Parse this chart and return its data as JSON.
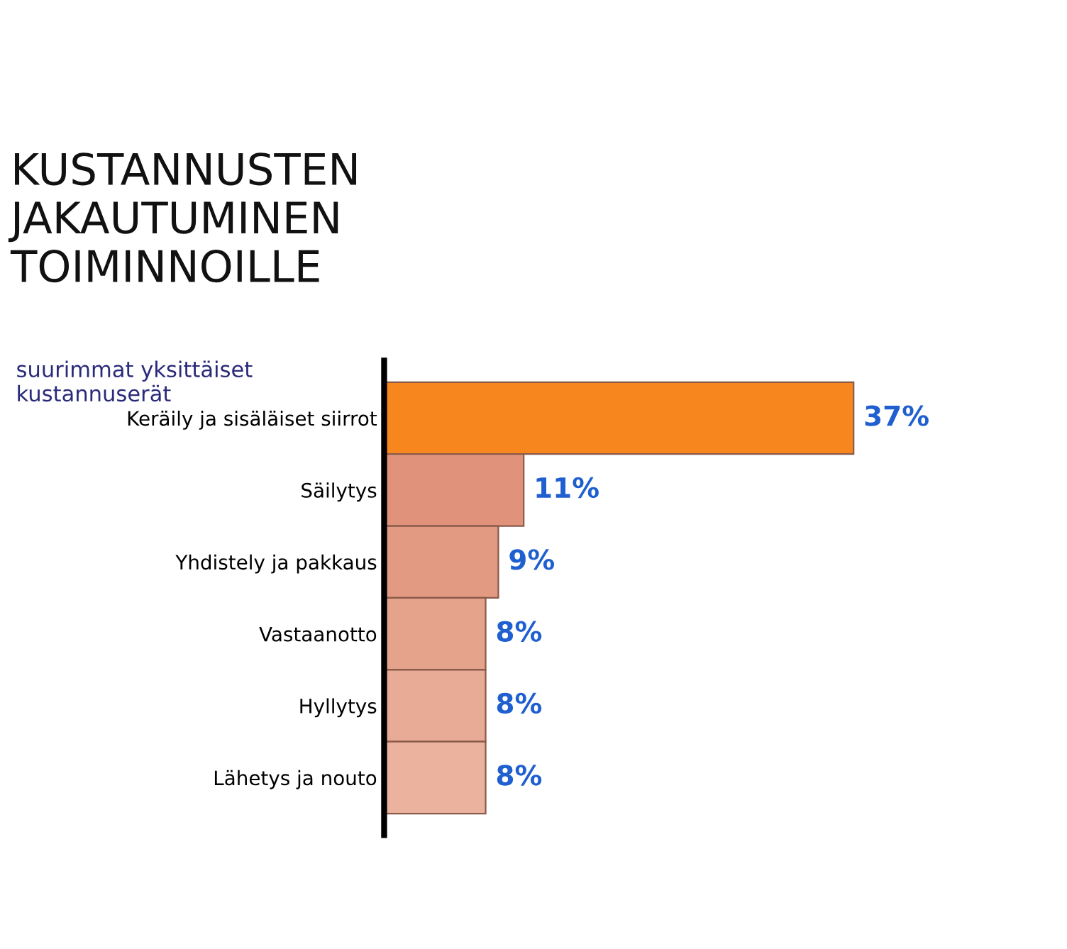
{
  "chart_data": {
    "type": "bar",
    "orientation": "horizontal",
    "title": "KUSTANNUSTEN\nJAKAUTUMINEN\nTOIMINNOILLE",
    "subtitle": "suurimmat yksittäiset\nkustannuserät",
    "categories": [
      "Keräily ja sisäläiset siirrot",
      "Säilytys",
      "Yhdistely ja pakkaus",
      "Vastaanotto",
      "Hyllytys",
      "Lähetys ja nouto"
    ],
    "values": [
      37,
      11,
      9,
      8,
      8,
      8
    ],
    "value_labels": [
      "37%",
      "11%",
      "9%",
      "8%",
      "8%",
      "8%"
    ],
    "colors": [
      "#f7861e",
      "#e0937a",
      "#e39a82",
      "#e6a38b",
      "#e8ab95",
      "#ebb39e"
    ],
    "grid": false,
    "legend": false
  }
}
